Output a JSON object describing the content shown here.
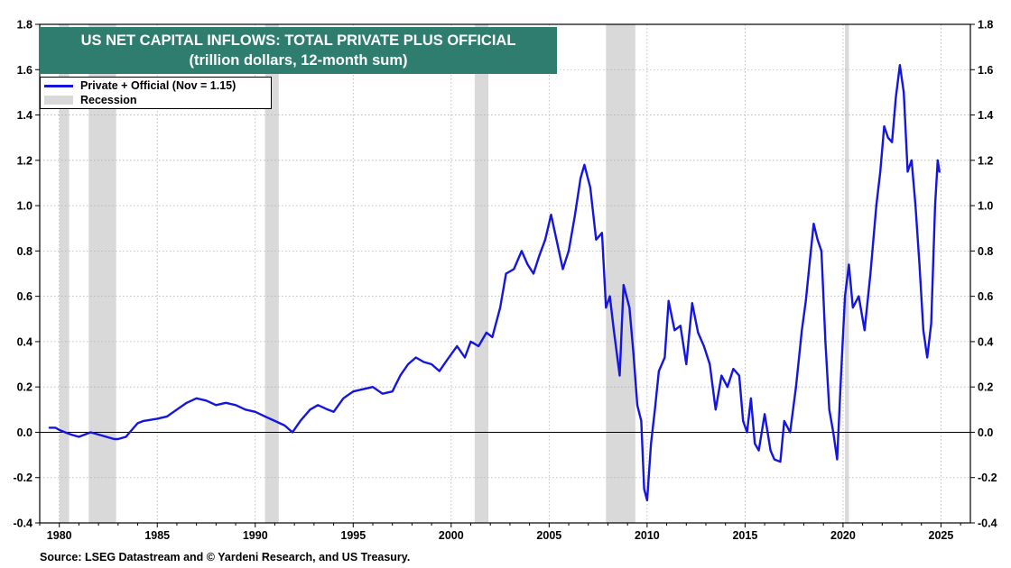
{
  "title": {
    "line1": "US NET CAPITAL INFLOWS: TOTAL PRIVATE PLUS OFFICIAL",
    "line2": "(trillion dollars, 12-month sum)"
  },
  "legend": {
    "series_label": "Private + Official (Nov = 1.15)",
    "recession_label": "Recession"
  },
  "source": "Source: LSEG Datastream and © Yardeni Research, and US Treasury.",
  "colors": {
    "title_bg": "#2e7d6f",
    "series": "#1515e0",
    "recession": "#d9d9d9"
  },
  "chart_data": {
    "type": "line",
    "x_axis": {
      "range": [
        1979.0,
        2026.5
      ],
      "ticks": [
        1980,
        1985,
        1990,
        1995,
        2000,
        2005,
        2010,
        2015,
        2020,
        2025
      ],
      "tick_labels": [
        "1980",
        "1985",
        "1990",
        "1995",
        "2000",
        "2005",
        "2010",
        "2015",
        "2020",
        "2025"
      ]
    },
    "y_axis": {
      "range": [
        -0.4,
        1.8
      ],
      "ticks": [
        -0.4,
        -0.2,
        0.0,
        0.2,
        0.4,
        0.6,
        0.8,
        1.0,
        1.2,
        1.4,
        1.6,
        1.8
      ],
      "tick_labels": [
        "-0.4",
        "-0.2",
        "0.0",
        "0.2",
        "0.4",
        "0.6",
        "0.8",
        "1.0",
        "1.2",
        "1.4",
        "1.6",
        "1.8"
      ],
      "both_sides": true
    },
    "grid": "dotted",
    "zero_line": true,
    "legend_position": "top-left",
    "recessions": [
      [
        1980.0,
        1980.5
      ],
      [
        1981.5,
        1982.9
      ],
      [
        1990.5,
        1991.2
      ],
      [
        2001.2,
        2001.9
      ],
      [
        2007.9,
        2009.4
      ],
      [
        2020.1,
        2020.3
      ]
    ],
    "series": [
      {
        "name": "Private + Official (Nov = 1.15)",
        "points": [
          [
            1979.5,
            0.02
          ],
          [
            1979.8,
            0.02
          ],
          [
            1980.0,
            0.01
          ],
          [
            1980.3,
            0.0
          ],
          [
            1980.6,
            -0.01
          ],
          [
            1981.0,
            -0.02
          ],
          [
            1981.3,
            -0.01
          ],
          [
            1981.6,
            0.0
          ],
          [
            1982.0,
            -0.01
          ],
          [
            1982.4,
            -0.02
          ],
          [
            1982.8,
            -0.03
          ],
          [
            1983.0,
            -0.03
          ],
          [
            1983.4,
            -0.02
          ],
          [
            1983.7,
            0.01
          ],
          [
            1984.0,
            0.04
          ],
          [
            1984.3,
            0.05
          ],
          [
            1985.0,
            0.06
          ],
          [
            1985.5,
            0.07
          ],
          [
            1986.0,
            0.1
          ],
          [
            1986.5,
            0.13
          ],
          [
            1987.0,
            0.15
          ],
          [
            1987.5,
            0.14
          ],
          [
            1988.0,
            0.12
          ],
          [
            1988.5,
            0.13
          ],
          [
            1989.0,
            0.12
          ],
          [
            1989.5,
            0.1
          ],
          [
            1990.0,
            0.09
          ],
          [
            1990.5,
            0.07
          ],
          [
            1991.0,
            0.05
          ],
          [
            1991.5,
            0.03
          ],
          [
            1991.9,
            0.0
          ],
          [
            1992.3,
            0.05
          ],
          [
            1992.8,
            0.1
          ],
          [
            1993.2,
            0.12
          ],
          [
            1993.7,
            0.1
          ],
          [
            1994.0,
            0.09
          ],
          [
            1994.5,
            0.15
          ],
          [
            1995.0,
            0.18
          ],
          [
            1995.5,
            0.19
          ],
          [
            1996.0,
            0.2
          ],
          [
            1996.5,
            0.17
          ],
          [
            1997.0,
            0.18
          ],
          [
            1997.4,
            0.25
          ],
          [
            1997.8,
            0.3
          ],
          [
            1998.2,
            0.33
          ],
          [
            1998.6,
            0.31
          ],
          [
            1999.0,
            0.3
          ],
          [
            1999.4,
            0.27
          ],
          [
            1999.8,
            0.32
          ],
          [
            2000.3,
            0.38
          ],
          [
            2000.7,
            0.33
          ],
          [
            2001.0,
            0.4
          ],
          [
            2001.4,
            0.38
          ],
          [
            2001.8,
            0.44
          ],
          [
            2002.1,
            0.42
          ],
          [
            2002.5,
            0.55
          ],
          [
            2002.8,
            0.7
          ],
          [
            2003.2,
            0.72
          ],
          [
            2003.6,
            0.8
          ],
          [
            2003.9,
            0.74
          ],
          [
            2004.2,
            0.7
          ],
          [
            2004.5,
            0.78
          ],
          [
            2004.8,
            0.85
          ],
          [
            2005.1,
            0.96
          ],
          [
            2005.4,
            0.84
          ],
          [
            2005.7,
            0.72
          ],
          [
            2006.0,
            0.8
          ],
          [
            2006.3,
            0.95
          ],
          [
            2006.6,
            1.12
          ],
          [
            2006.8,
            1.18
          ],
          [
            2007.1,
            1.08
          ],
          [
            2007.4,
            0.85
          ],
          [
            2007.7,
            0.88
          ],
          [
            2007.9,
            0.55
          ],
          [
            2008.1,
            0.6
          ],
          [
            2008.3,
            0.45
          ],
          [
            2008.6,
            0.25
          ],
          [
            2008.8,
            0.65
          ],
          [
            2009.1,
            0.55
          ],
          [
            2009.3,
            0.35
          ],
          [
            2009.5,
            0.12
          ],
          [
            2009.7,
            0.05
          ],
          [
            2009.85,
            -0.25
          ],
          [
            2010.0,
            -0.3
          ],
          [
            2010.2,
            -0.05
          ],
          [
            2010.4,
            0.1
          ],
          [
            2010.6,
            0.27
          ],
          [
            2010.9,
            0.33
          ],
          [
            2011.1,
            0.58
          ],
          [
            2011.4,
            0.45
          ],
          [
            2011.7,
            0.47
          ],
          [
            2012.0,
            0.3
          ],
          [
            2012.3,
            0.57
          ],
          [
            2012.6,
            0.44
          ],
          [
            2012.9,
            0.38
          ],
          [
            2013.2,
            0.3
          ],
          [
            2013.5,
            0.1
          ],
          [
            2013.8,
            0.25
          ],
          [
            2014.1,
            0.2
          ],
          [
            2014.4,
            0.28
          ],
          [
            2014.7,
            0.25
          ],
          [
            2014.9,
            0.05
          ],
          [
            2015.1,
            0.0
          ],
          [
            2015.3,
            0.15
          ],
          [
            2015.5,
            -0.05
          ],
          [
            2015.7,
            -0.08
          ],
          [
            2016.0,
            0.08
          ],
          [
            2016.3,
            -0.08
          ],
          [
            2016.5,
            -0.12
          ],
          [
            2016.8,
            -0.13
          ],
          [
            2017.0,
            0.05
          ],
          [
            2017.3,
            0.0
          ],
          [
            2017.6,
            0.2
          ],
          [
            2017.9,
            0.45
          ],
          [
            2018.1,
            0.58
          ],
          [
            2018.3,
            0.75
          ],
          [
            2018.5,
            0.92
          ],
          [
            2018.7,
            0.85
          ],
          [
            2018.9,
            0.8
          ],
          [
            2019.1,
            0.4
          ],
          [
            2019.3,
            0.1
          ],
          [
            2019.5,
            0.0
          ],
          [
            2019.7,
            -0.12
          ],
          [
            2019.9,
            0.25
          ],
          [
            2020.1,
            0.6
          ],
          [
            2020.3,
            0.74
          ],
          [
            2020.5,
            0.55
          ],
          [
            2020.8,
            0.6
          ],
          [
            2021.1,
            0.45
          ],
          [
            2021.4,
            0.7
          ],
          [
            2021.7,
            1.0
          ],
          [
            2021.9,
            1.15
          ],
          [
            2022.1,
            1.35
          ],
          [
            2022.3,
            1.3
          ],
          [
            2022.5,
            1.28
          ],
          [
            2022.7,
            1.48
          ],
          [
            2022.9,
            1.62
          ],
          [
            2023.1,
            1.5
          ],
          [
            2023.3,
            1.15
          ],
          [
            2023.5,
            1.2
          ],
          [
            2023.7,
            1.0
          ],
          [
            2023.9,
            0.74
          ],
          [
            2024.1,
            0.45
          ],
          [
            2024.3,
            0.33
          ],
          [
            2024.5,
            0.48
          ],
          [
            2024.7,
            1.0
          ],
          [
            2024.83,
            1.2
          ],
          [
            2024.92,
            1.15
          ]
        ]
      }
    ]
  }
}
